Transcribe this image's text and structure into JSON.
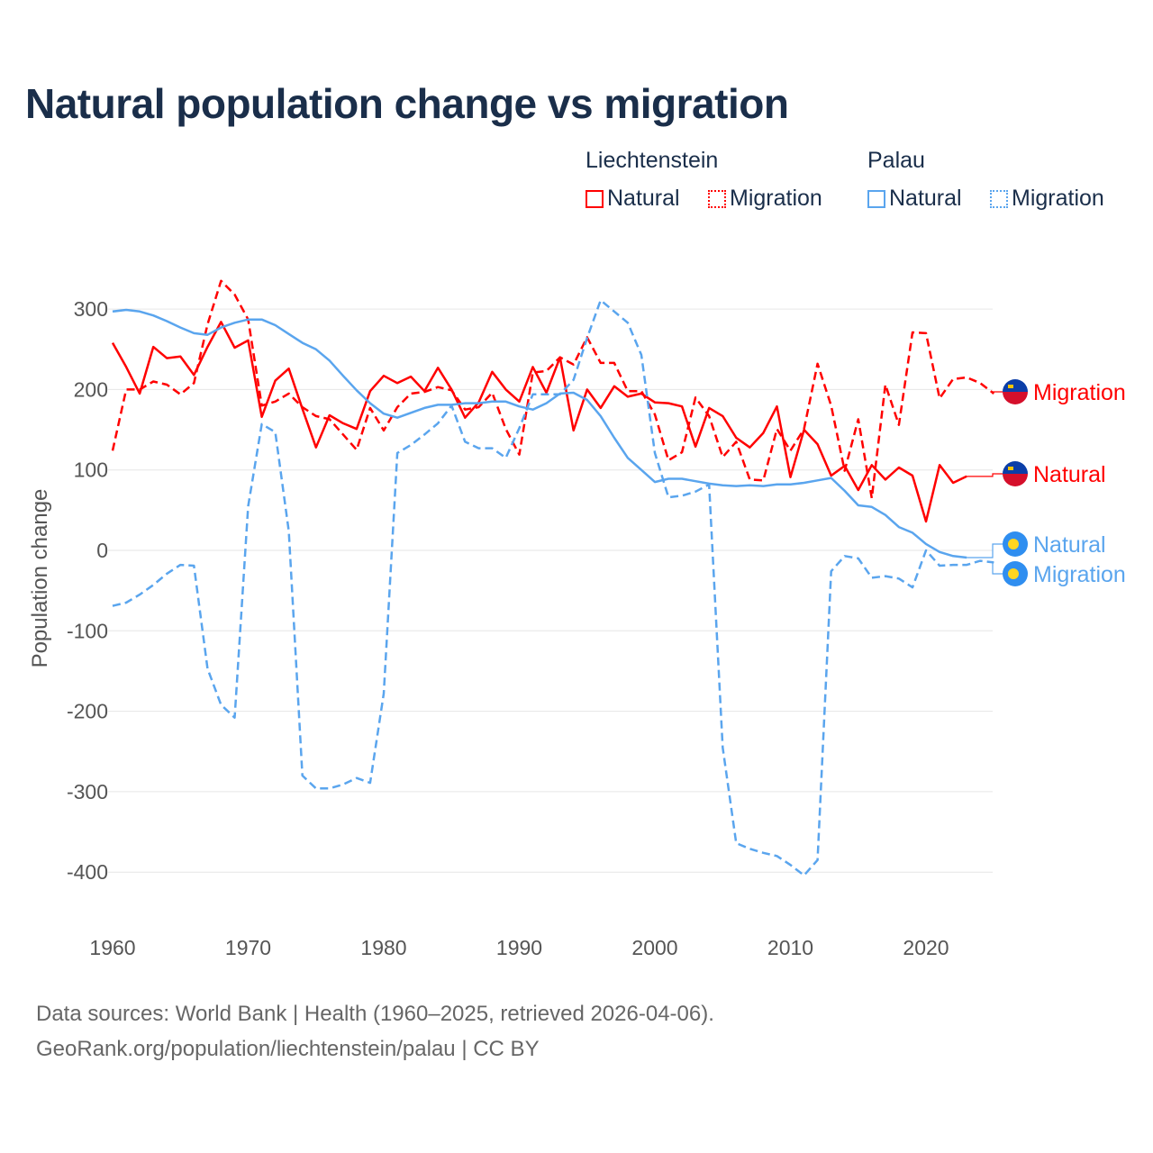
{
  "chart_data": {
    "type": "line",
    "title": "Natural population change vs migration",
    "ylabel": "Population change",
    "xlabel": "",
    "ylim": [
      -450,
      350
    ],
    "xlim": [
      1960,
      2025
    ],
    "yticks": [
      "300",
      "200",
      "100",
      "0",
      "-100",
      "-200",
      "-300",
      "-400"
    ],
    "ytick_values": [
      300,
      200,
      100,
      0,
      -100,
      -200,
      -300,
      -400
    ],
    "xticks": [
      "1960",
      "1970",
      "1980",
      "1990",
      "2000",
      "2010",
      "2020"
    ],
    "xtick_values": [
      1960,
      1970,
      1980,
      1990,
      2000,
      2010,
      2020
    ],
    "grid": true,
    "legend": {
      "placement": "top-right",
      "groups": [
        {
          "name": "Liechtenstein",
          "items": [
            "Natural",
            "Migration"
          ]
        },
        {
          "name": "Palau",
          "items": [
            "Natural",
            "Migration"
          ]
        }
      ]
    },
    "series": [
      {
        "name": "Liechtenstein Natural",
        "country": "Liechtenstein",
        "kind": "Natural",
        "color": "#ff0000",
        "dashed": false,
        "start_year": 1960,
        "values": [
          258,
          228,
          195,
          253,
          239,
          241,
          218,
          253,
          284,
          252,
          261,
          166,
          211,
          226,
          176,
          128,
          168,
          158,
          151,
          198,
          217,
          208,
          216,
          198,
          227,
          200,
          165,
          184,
          222,
          200,
          185,
          228,
          196,
          240,
          149,
          200,
          177,
          204,
          191,
          195,
          184,
          183,
          179,
          129,
          177,
          167,
          140,
          128,
          146,
          179,
          91,
          150,
          132,
          93,
          105,
          75,
          106,
          88,
          103,
          93,
          36,
          106,
          84,
          92
        ]
      },
      {
        "name": "Liechtenstein Migration",
        "country": "Liechtenstein",
        "kind": "Migration",
        "color": "#ff0000",
        "dashed": true,
        "start_year": 1960,
        "values": [
          124,
          200,
          200,
          210,
          206,
          194,
          208,
          281,
          335,
          318,
          287,
          180,
          185,
          195,
          178,
          167,
          163,
          144,
          125,
          177,
          149,
          178,
          195,
          197,
          203,
          199,
          175,
          178,
          196,
          151,
          119,
          221,
          223,
          240,
          231,
          265,
          233,
          233,
          198,
          198,
          169,
          112,
          122,
          190,
          167,
          116,
          135,
          88,
          87,
          151,
          124,
          151,
          232,
          180,
          99,
          163,
          65,
          206,
          156,
          271,
          270,
          189,
          213,
          215,
          208,
          195
        ]
      },
      {
        "name": "Palau Natural",
        "country": "Palau",
        "kind": "Natural",
        "color": "#5aa5ee",
        "dashed": false,
        "start_year": 1960,
        "values": [
          297,
          299,
          297,
          292,
          285,
          277,
          270,
          268,
          277,
          283,
          287,
          287,
          280,
          269,
          258,
          250,
          236,
          217,
          199,
          183,
          170,
          165,
          171,
          177,
          181,
          181,
          183,
          183,
          185,
          185,
          179,
          175,
          183,
          195,
          196,
          187,
          167,
          140,
          115,
          100,
          85,
          89,
          89,
          86,
          83,
          81,
          80,
          81,
          80,
          82,
          82,
          84,
          87,
          90,
          74,
          56,
          54,
          44,
          29,
          22,
          8,
          -2,
          -7,
          -9
        ]
      },
      {
        "name": "Palau Migration",
        "country": "Palau",
        "kind": "Migration",
        "color": "#5aa5ee",
        "dashed": true,
        "start_year": 1960,
        "values": [
          -69,
          -65,
          -55,
          -43,
          -29,
          -18,
          -19,
          -147,
          -192,
          -208,
          55,
          157,
          147,
          24,
          -280,
          -296,
          -296,
          -291,
          -283,
          -289,
          -178,
          121,
          131,
          144,
          158,
          180,
          135,
          127,
          127,
          115,
          152,
          194,
          194,
          194,
          212,
          264,
          311,
          297,
          283,
          243,
          121,
          66,
          68,
          73,
          82,
          -245,
          -364,
          -371,
          -376,
          -380,
          -391,
          -404,
          -385,
          -26,
          -7,
          -10,
          -34,
          -32,
          -35,
          -46,
          0,
          -19,
          -18,
          -18,
          -13,
          -15
        ]
      }
    ],
    "end_labels": [
      {
        "series": 1,
        "text": "Migration",
        "flag": "liechtenstein-flag-icon"
      },
      {
        "series": 0,
        "text": "Natural",
        "flag": "liechtenstein-flag-icon"
      },
      {
        "series": 2,
        "text": "Natural",
        "flag": "palau-flag-icon"
      },
      {
        "series": 3,
        "text": "Migration",
        "flag": "palau-flag-icon"
      }
    ]
  },
  "footer": {
    "line1": "Data sources: World Bank | Health (1960–2025, retrieved 2026-04-06).",
    "line2": "GeoRank.org/population/liechtenstein/palau | CC BY"
  },
  "colors": {
    "liechtenstein": "#ff0000",
    "palau": "#5aa5ee",
    "title": "#1a2e4a"
  }
}
